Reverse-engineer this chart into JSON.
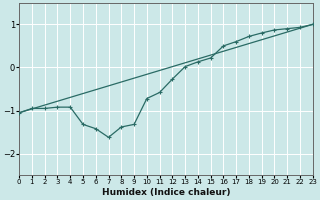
{
  "title": "",
  "xlabel": "Humidex (Indice chaleur)",
  "ylabel": "",
  "bg_color": "#cce8e8",
  "grid_color": "#ffffff",
  "line_color": "#2a6b65",
  "line1_x": [
    0,
    1,
    2,
    3,
    4,
    5,
    6,
    7,
    8,
    9,
    10,
    11,
    12,
    13,
    14,
    15,
    16,
    17,
    18,
    19,
    20,
    21,
    22,
    23
  ],
  "line1_y": [
    -1.05,
    -0.95,
    -0.95,
    -0.92,
    -0.92,
    -1.32,
    -1.42,
    -1.62,
    -1.38,
    -1.32,
    -0.72,
    -0.58,
    -0.27,
    0.02,
    0.13,
    0.22,
    0.5,
    0.6,
    0.72,
    0.8,
    0.87,
    0.9,
    0.93,
    1.0
  ],
  "line2_x": [
    0,
    23
  ],
  "line2_y": [
    -1.05,
    1.0
  ],
  "xlim": [
    0,
    23
  ],
  "ylim": [
    -2.5,
    1.5
  ],
  "yticks": [
    1,
    0,
    -1,
    -2
  ],
  "xticks": [
    0,
    1,
    2,
    3,
    4,
    5,
    6,
    7,
    8,
    9,
    10,
    11,
    12,
    13,
    14,
    15,
    16,
    17,
    18,
    19,
    20,
    21,
    22,
    23
  ],
  "tick_fontsize": 5.0,
  "xlabel_fontsize": 6.5,
  "figsize": [
    3.2,
    2.0
  ],
  "dpi": 100
}
